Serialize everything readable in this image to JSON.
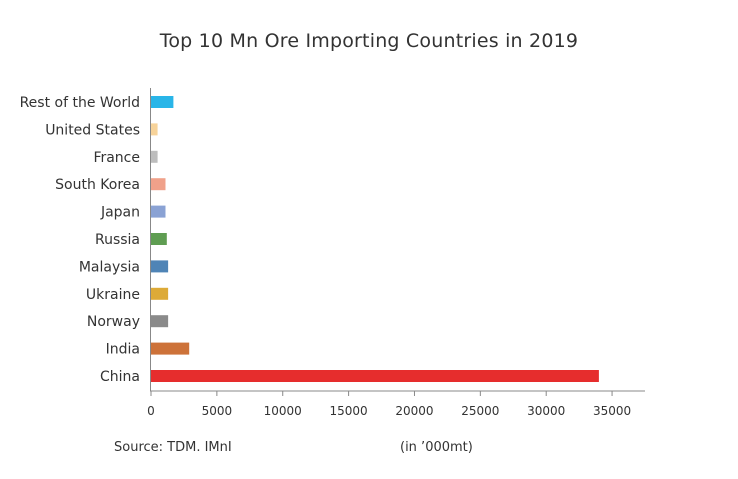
{
  "chart_data": {
    "type": "bar",
    "orientation": "horizontal",
    "title": "Top 10 Mn Ore Importing Countries in 2019",
    "source": "Source: TDM. IMnI",
    "unit_note": "(in ’000mt)",
    "xlim": [
      0,
      37500
    ],
    "x_ticks": [
      0,
      5000,
      10000,
      15000,
      20000,
      25000,
      30000,
      35000
    ],
    "x_tick_labels": [
      "0",
      "5000",
      "10000",
      "15000",
      "20000",
      "25000",
      "30000",
      "35000"
    ],
    "grid": false,
    "categories": [
      "Rest of the World",
      "United States",
      "France",
      "South Korea",
      "Japan",
      "Russia",
      "Malaysia",
      "Ukraine",
      "Norway",
      "India",
      "China"
    ],
    "values": [
      1700,
      500,
      500,
      1100,
      1100,
      1200,
      1300,
      1300,
      1300,
      2900,
      34000
    ],
    "colors": [
      "#29b5e8",
      "#f7d39a",
      "#bdbdbd",
      "#f0a18a",
      "#8aa2d4",
      "#5f9d52",
      "#4f84b6",
      "#ddaa37",
      "#8a8a8a",
      "#cd7239",
      "#e62d2d"
    ],
    "axis_color": "#888888"
  }
}
